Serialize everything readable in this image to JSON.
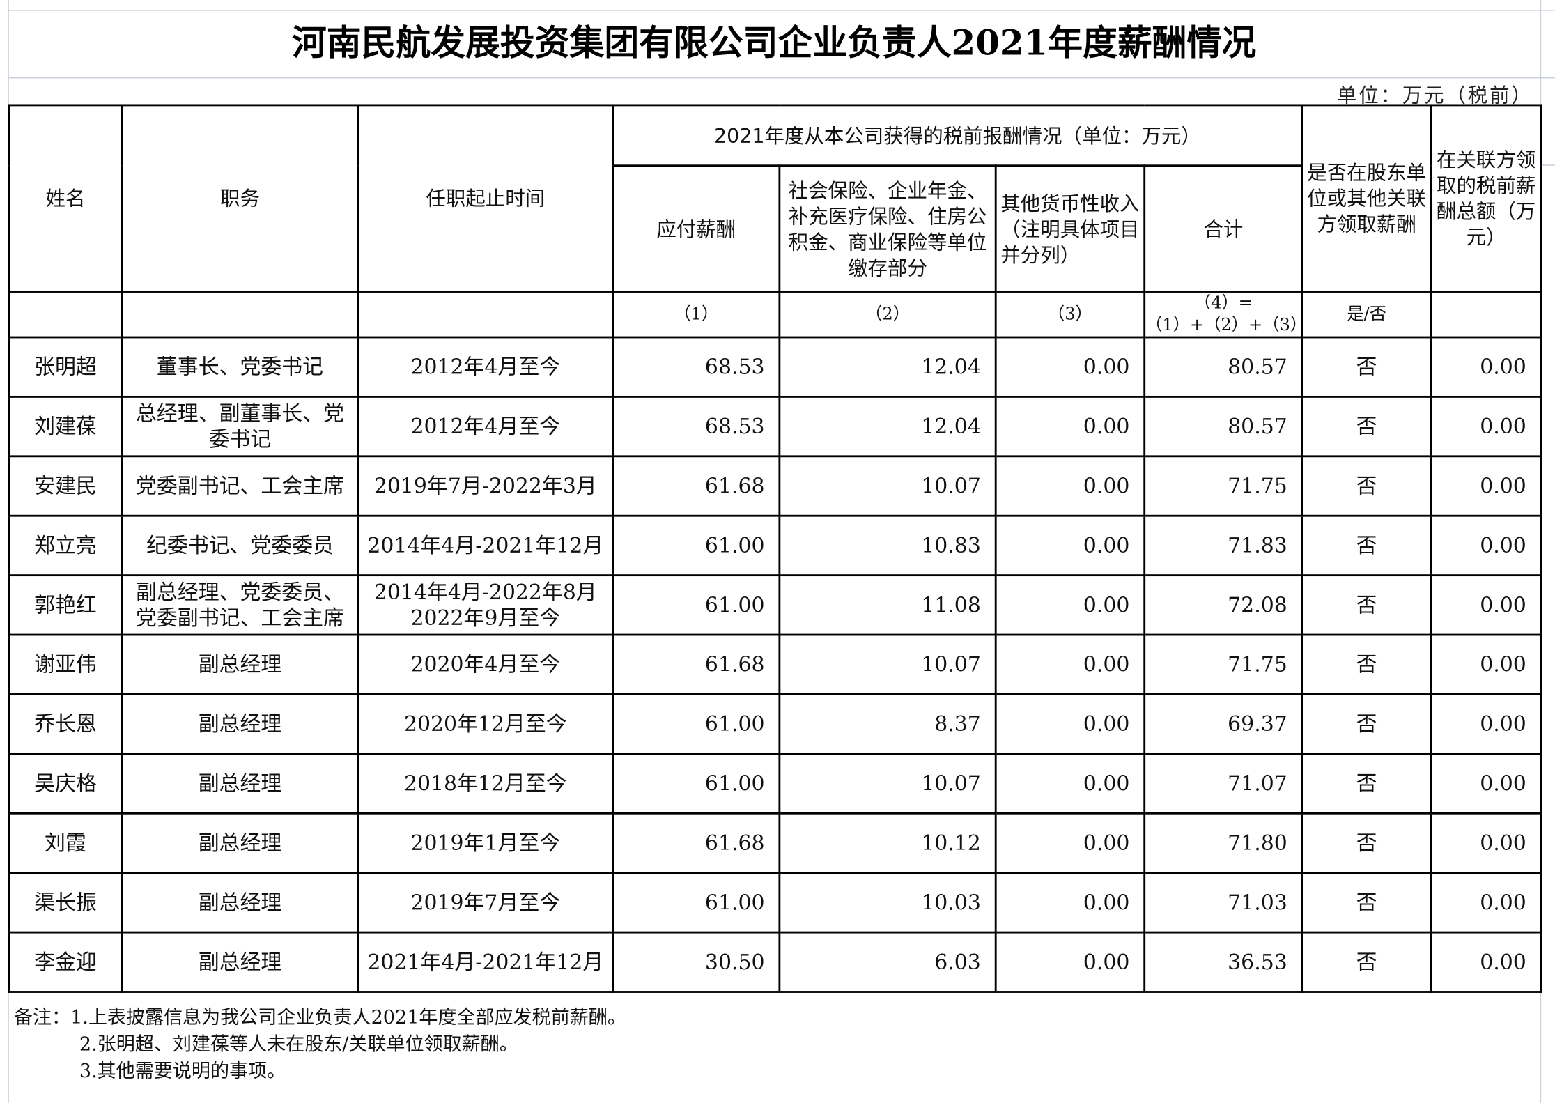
{
  "title": "河南民航发展投资集团有限公司企业负责人2021年度薪酬情况",
  "unit": "单位：万元（税前）",
  "headers": {
    "name": "姓名",
    "position": "职务",
    "term": "任职起止时间",
    "group": "2021年度从本公司获得的税前报酬情况（单位：万元）",
    "salary": "应付薪酬",
    "insurance": "社会保险、企业年金、补充医疗保险、住房公积金、商业保险等单位缴存部分",
    "other": "其他货币性收入（注明具体项目并分列）",
    "total": "合计",
    "shareholder": "是否在股东单位或其他关联方领取薪酬",
    "related": "在关联方领取的税前薪酬总额（万元）"
  },
  "index_row": {
    "salary": "（1）",
    "insurance": "（2）",
    "other": "（3）",
    "total": "（4）=（1）+（2）+（3）",
    "shareholder": "是/否"
  },
  "rows": [
    {
      "name": "张明超",
      "position": "董事长、党委书记",
      "term": "2012年4月至今",
      "salary": "68.53",
      "insurance": "12.04",
      "other": "0.00",
      "total": "80.57",
      "shareholder": "否",
      "related": "0.00"
    },
    {
      "name": "刘建葆",
      "position": "总经理、副董事长、党委书记",
      "term": "2012年4月至今",
      "salary": "68.53",
      "insurance": "12.04",
      "other": "0.00",
      "total": "80.57",
      "shareholder": "否",
      "related": "0.00"
    },
    {
      "name": "安建民",
      "position": "党委副书记、工会主席",
      "term": "2019年7月-2022年3月",
      "salary": "61.68",
      "insurance": "10.07",
      "other": "0.00",
      "total": "71.75",
      "shareholder": "否",
      "related": "0.00"
    },
    {
      "name": "郑立亮",
      "position": "纪委书记、党委委员",
      "term": "2014年4月-2021年12月",
      "salary": "61.00",
      "insurance": "10.83",
      "other": "0.00",
      "total": "71.83",
      "shareholder": "否",
      "related": "0.00"
    },
    {
      "name": "郭艳红",
      "position": "副总经理、党委委员、党委副书记、工会主席",
      "term": "2014年4月-2022年8月 2022年9月至今",
      "salary": "61.00",
      "insurance": "11.08",
      "other": "0.00",
      "total": "72.08",
      "shareholder": "否",
      "related": "0.00"
    },
    {
      "name": "谢亚伟",
      "position": "副总经理",
      "term": "2020年4月至今",
      "salary": "61.68",
      "insurance": "10.07",
      "other": "0.00",
      "total": "71.75",
      "shareholder": "否",
      "related": "0.00"
    },
    {
      "name": "乔长恩",
      "position": "副总经理",
      "term": "2020年12月至今",
      "salary": "61.00",
      "insurance": "8.37",
      "other": "0.00",
      "total": "69.37",
      "shareholder": "否",
      "related": "0.00"
    },
    {
      "name": "吴庆格",
      "position": "副总经理",
      "term": "2018年12月至今",
      "salary": "61.00",
      "insurance": "10.07",
      "other": "0.00",
      "total": "71.07",
      "shareholder": "否",
      "related": "0.00"
    },
    {
      "name": "刘霞",
      "position": "副总经理",
      "term": "2019年1月至今",
      "salary": "61.68",
      "insurance": "10.12",
      "other": "0.00",
      "total": "71.80",
      "shareholder": "否",
      "related": "0.00"
    },
    {
      "name": "渠长振",
      "position": "副总经理",
      "term": "2019年7月至今",
      "salary": "61.00",
      "insurance": "10.03",
      "other": "0.00",
      "total": "71.03",
      "shareholder": "否",
      "related": "0.00"
    },
    {
      "name": "李金迎",
      "position": "副总经理",
      "term": "2021年4月-2021年12月",
      "salary": "30.50",
      "insurance": "6.03",
      "other": "0.00",
      "total": "36.53",
      "shareholder": "否",
      "related": "0.00"
    }
  ],
  "notes": [
    "备注：1.上表披露信息为我公司企业负责人2021年度全部应发税前薪酬。",
    "2.张明超、刘建葆等人未在股东/关联单位领取薪酬。",
    "3.其他需要说明的事项。"
  ],
  "colors": {
    "border": "#000000",
    "gridline": "#c9cfdc"
  }
}
